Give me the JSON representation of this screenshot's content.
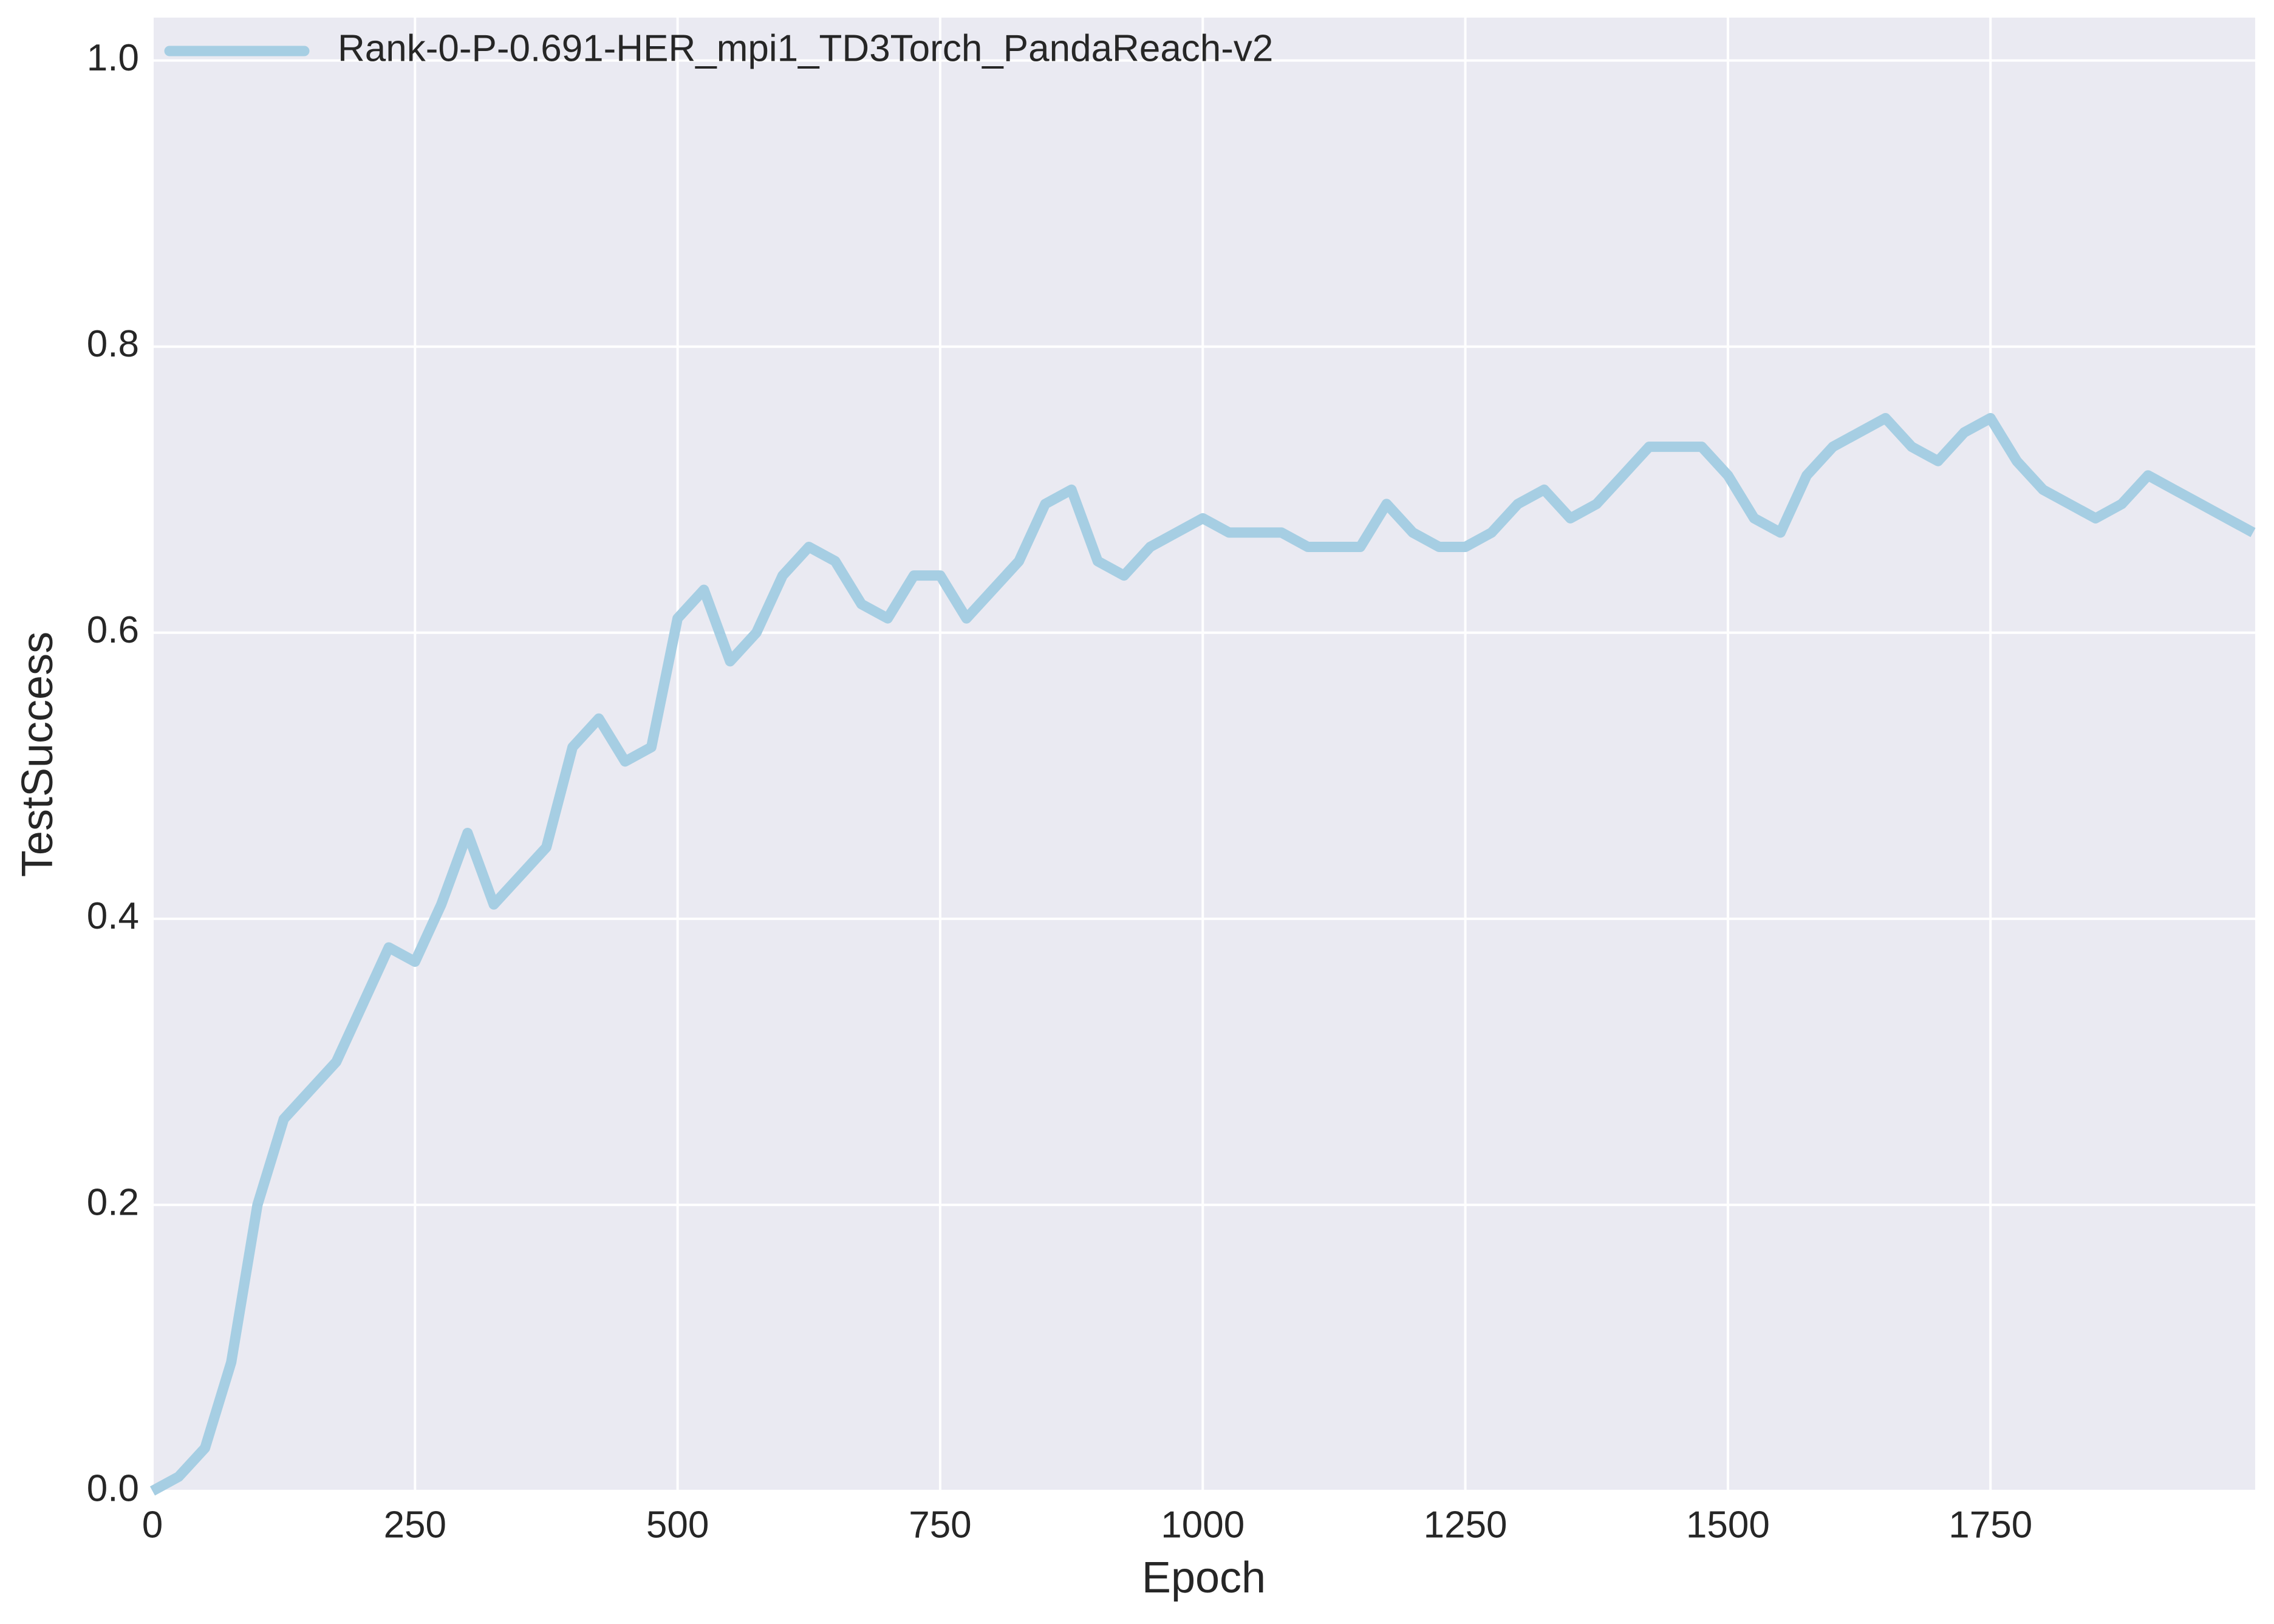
{
  "chart_data": {
    "type": "line",
    "xlabel": "Epoch",
    "ylabel": "TestSuccess",
    "x": [
      0,
      25,
      50,
      75,
      100,
      125,
      150,
      175,
      200,
      225,
      250,
      275,
      300,
      325,
      350,
      375,
      400,
      425,
      450,
      475,
      500,
      525,
      550,
      575,
      600,
      625,
      650,
      675,
      700,
      725,
      750,
      775,
      800,
      825,
      850,
      875,
      900,
      925,
      950,
      975,
      1000,
      1025,
      1050,
      1075,
      1100,
      1125,
      1150,
      1175,
      1200,
      1225,
      1250,
      1275,
      1300,
      1325,
      1350,
      1375,
      1400,
      1425,
      1450,
      1475,
      1500,
      1525,
      1550,
      1575,
      1600,
      1625,
      1650,
      1675,
      1700,
      1725,
      1750,
      1775,
      1800,
      1825,
      1850,
      1875,
      1900,
      1925,
      1950,
      1975,
      2000
    ],
    "series": [
      {
        "name": "Rank-0-P-0.691-HER_mpi1_TD3Torch_PandaReach-v2",
        "color": "#a6cee3",
        "values": [
          0,
          0.01,
          0.03,
          0.09,
          0.2,
          0.26,
          0.28,
          0.3,
          0.34,
          0.38,
          0.37,
          0.41,
          0.46,
          0.41,
          0.43,
          0.45,
          0.52,
          0.54,
          0.51,
          0.52,
          0.61,
          0.63,
          0.58,
          0.6,
          0.64,
          0.66,
          0.65,
          0.62,
          0.61,
          0.64,
          0.64,
          0.61,
          0.63,
          0.65,
          0.69,
          0.7,
          0.65,
          0.64,
          0.66,
          0.67,
          0.68,
          0.67,
          0.67,
          0.67,
          0.66,
          0.66,
          0.66,
          0.69,
          0.67,
          0.66,
          0.66,
          0.67,
          0.69,
          0.7,
          0.68,
          0.69,
          0.71,
          0.73,
          0.73,
          0.73,
          0.71,
          0.68,
          0.67,
          0.71,
          0.73,
          0.74,
          0.75,
          0.73,
          0.72,
          0.74,
          0.75,
          0.72,
          0.7,
          0.69,
          0.68,
          0.69,
          0.71,
          0.7,
          0.69,
          0.68,
          0.67
        ]
      }
    ],
    "xlim": [
      0,
      2002
    ],
    "xticks": [
      0,
      250,
      500,
      750,
      1000,
      1250,
      1500,
      1750
    ],
    "ylim": [
      0,
      1.03
    ],
    "yticks": [
      {
        "value": 0,
        "label": "0.0"
      },
      {
        "value": 0.2,
        "label": "0.2"
      },
      {
        "value": 0.4,
        "label": "0.4"
      },
      {
        "value": 0.6,
        "label": "0.6"
      },
      {
        "value": 0.8,
        "label": "0.8"
      },
      {
        "value": 1,
        "label": "1.0"
      }
    ],
    "grid": true,
    "legend": "upper left"
  }
}
